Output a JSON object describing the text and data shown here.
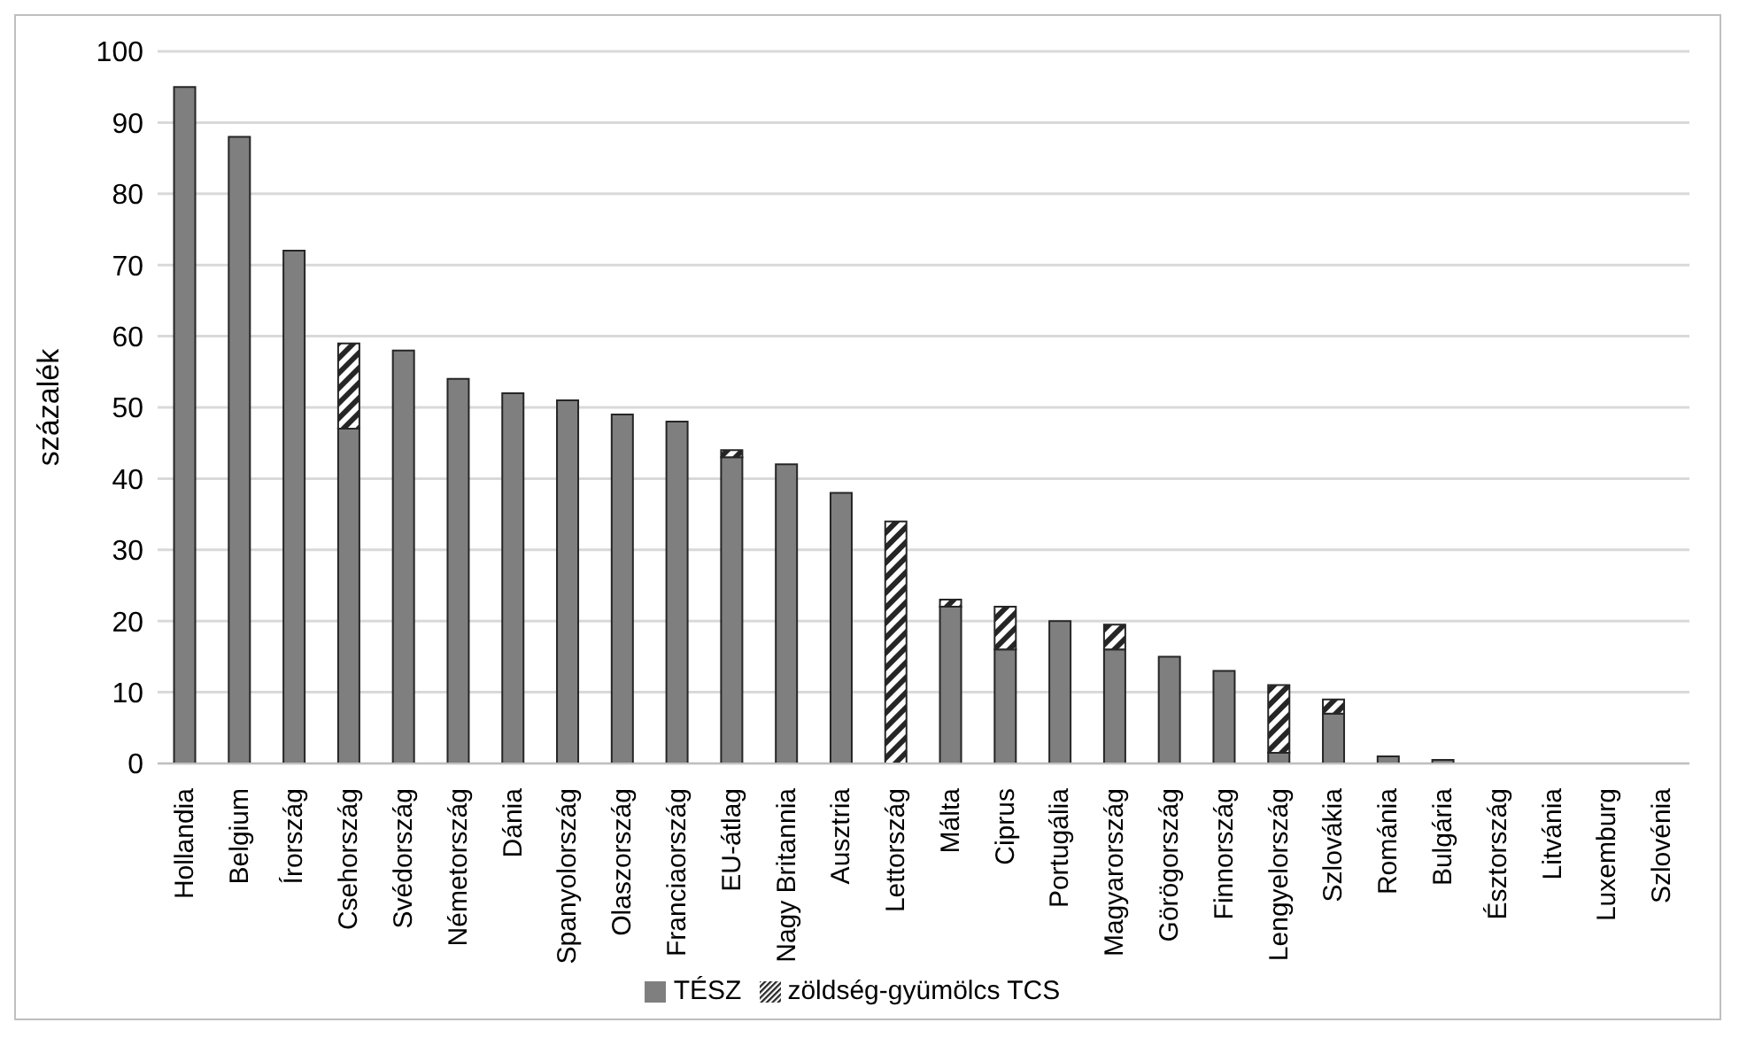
{
  "chart_data": {
    "type": "bar",
    "stacked": true,
    "ylabel": "százalék",
    "categories": [
      "Hollandia",
      "Belgium",
      "Írország",
      "Csehország",
      "Svédország",
      "Németország",
      "Dánia",
      "Spanyolország",
      "Olaszország",
      "Franciaország",
      "EU-átlag",
      "Nagy Britannia",
      "Ausztria",
      "Lettország",
      "Málta",
      "Ciprus",
      "Portugália",
      "Magyarország",
      "Görögország",
      "Finnország",
      "Lengyelország",
      "Szlovákia",
      "Románia",
      "Bulgária",
      "Észtország",
      "Litvánia",
      "Luxemburg",
      "Szlovénia"
    ],
    "series": [
      {
        "name": "TÉSZ",
        "color": "#7f7f7f",
        "values": [
          95,
          88,
          72,
          47,
          58,
          54,
          52,
          51,
          49,
          48,
          43,
          42,
          38,
          0,
          22,
          16,
          20,
          16,
          15,
          13,
          1.5,
          7,
          1,
          0.5,
          0,
          0,
          0,
          0
        ]
      },
      {
        "name": "zöldség-gyümölcs TCS",
        "color": "#262626",
        "values": [
          0,
          0,
          0,
          12,
          0,
          0,
          0,
          0,
          0,
          0,
          1,
          0,
          0,
          34,
          1,
          6,
          0,
          3.5,
          0,
          0,
          9.5,
          2,
          0,
          0,
          0,
          0,
          0,
          0
        ]
      }
    ],
    "ylim": [
      0,
      100
    ],
    "yticks": [
      0,
      10,
      20,
      30,
      40,
      50,
      60,
      70,
      80,
      90,
      100
    ],
    "grid": "y",
    "legend": "bottom"
  }
}
